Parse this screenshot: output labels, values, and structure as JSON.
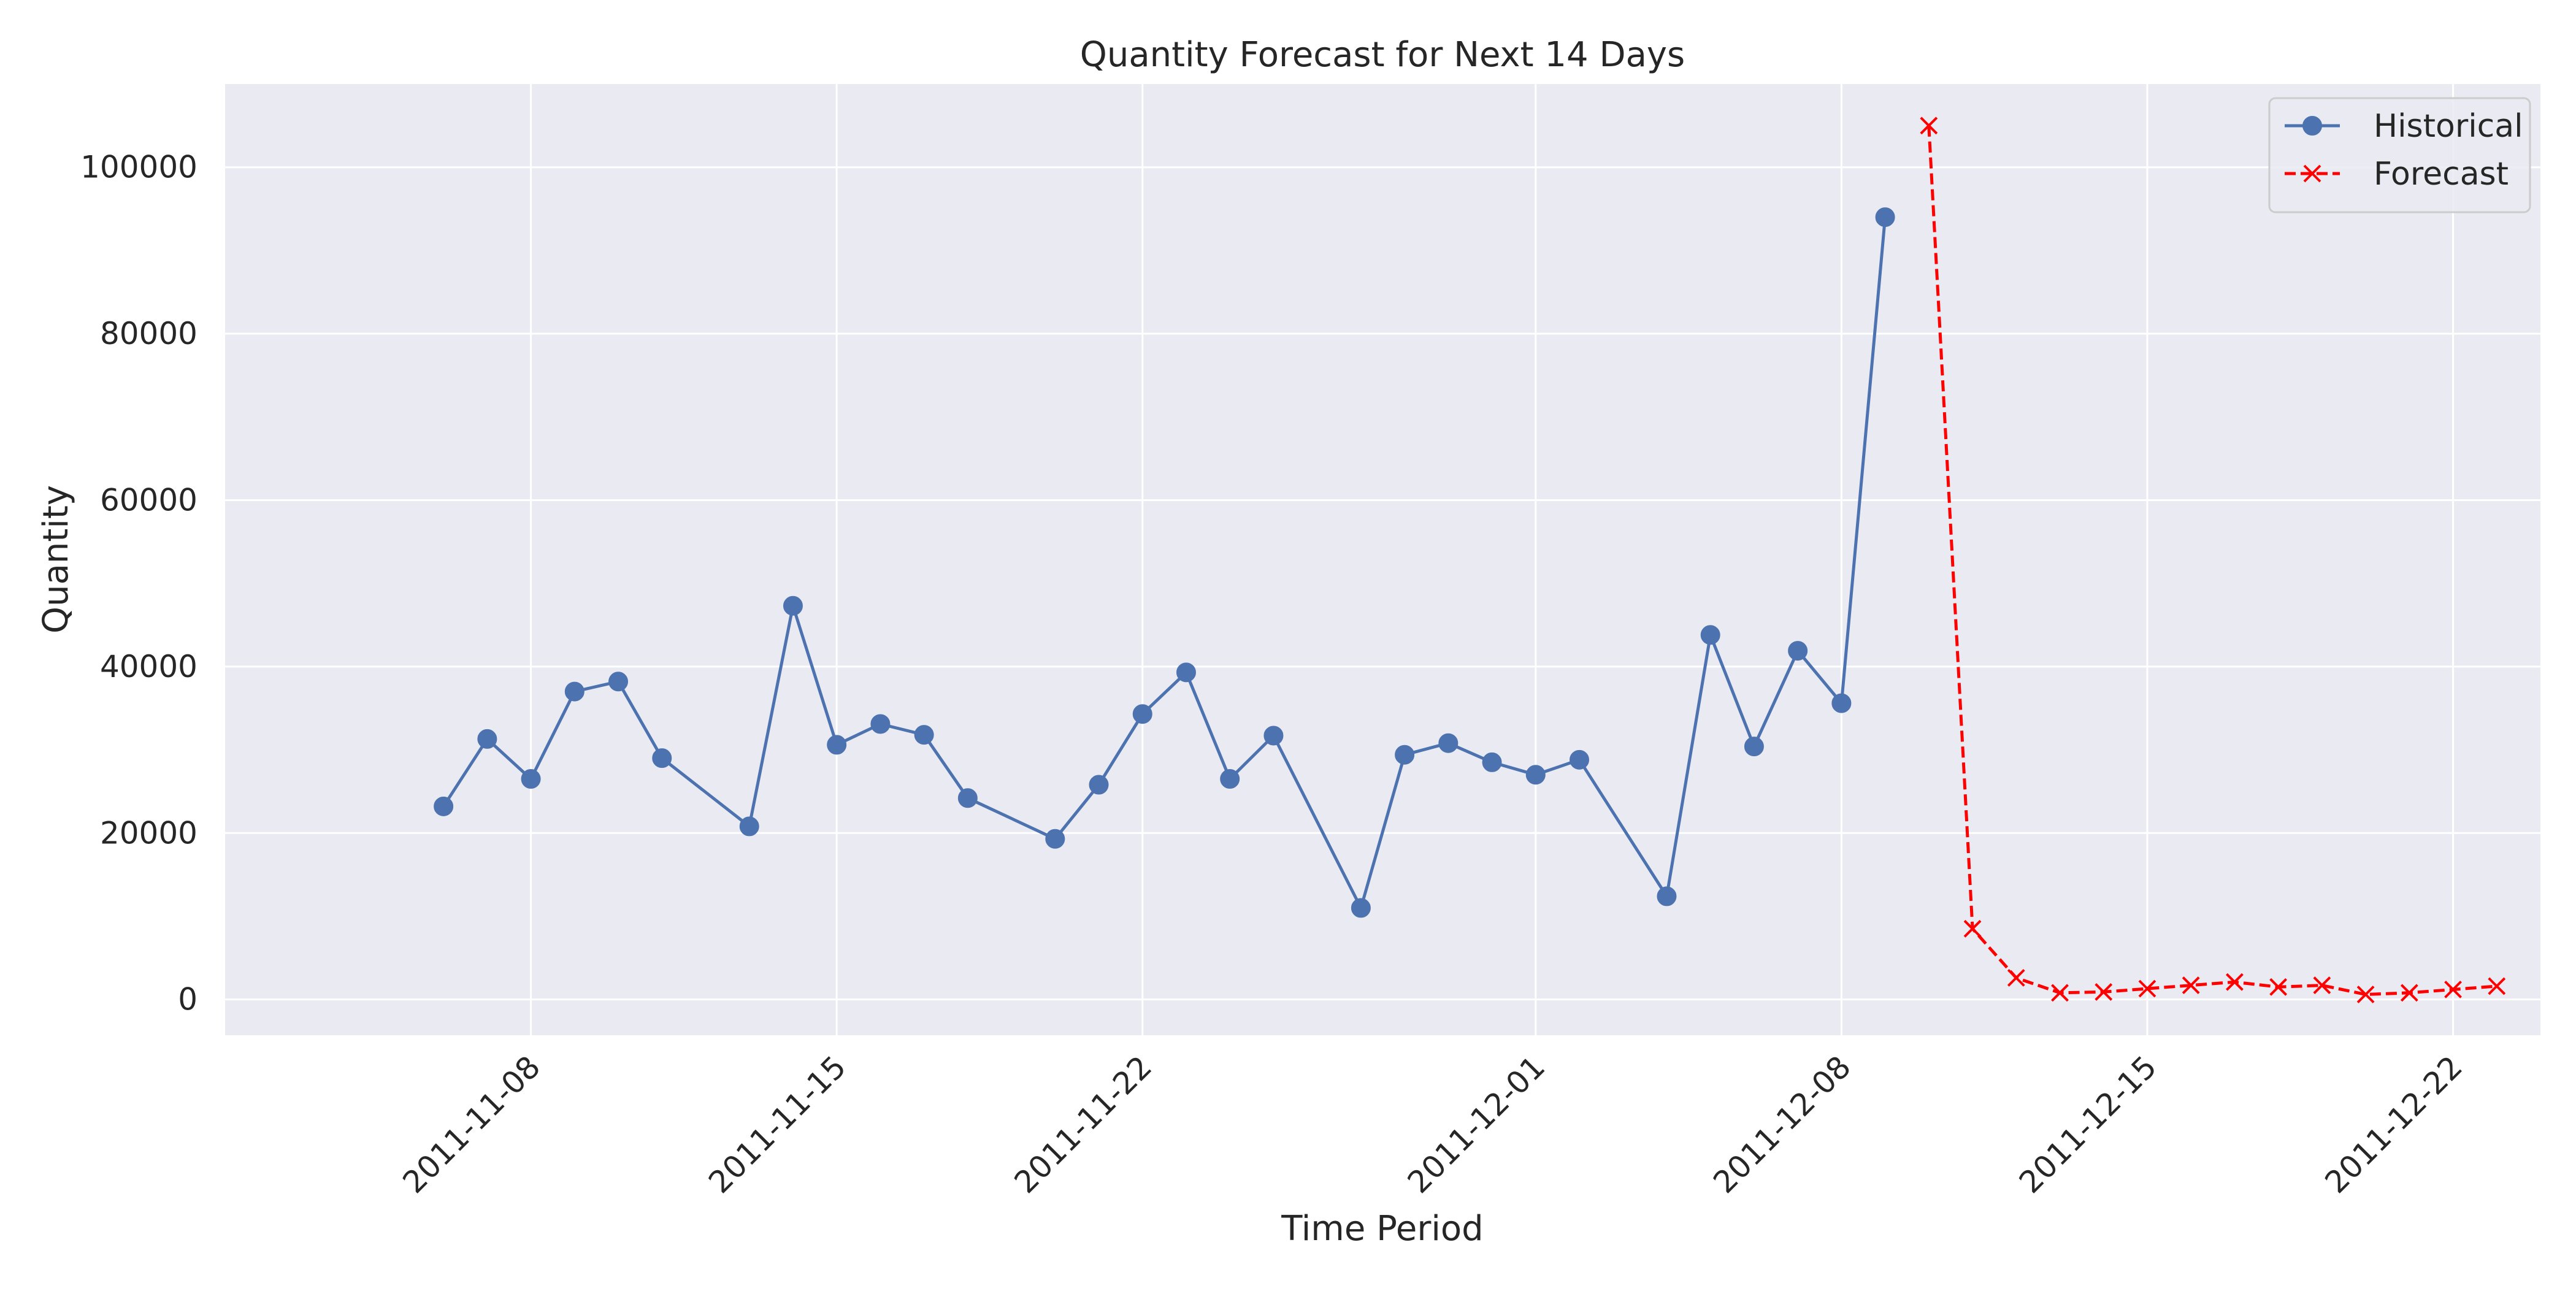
{
  "chart_data": {
    "type": "line",
    "title": "Quantity Forecast for Next 14 Days",
    "xlabel": "Time Period",
    "ylabel": "Quantity",
    "x_axis_type": "date",
    "xlim": [
      "2011-11-01",
      "2011-12-24"
    ],
    "ylim": [
      -4300,
      110000
    ],
    "x_ticks": [
      "2011-11-08",
      "2011-11-15",
      "2011-11-22",
      "2011-12-01",
      "2011-12-08",
      "2011-12-15",
      "2011-12-22"
    ],
    "y_ticks": [
      0,
      20000,
      40000,
      60000,
      80000,
      100000
    ],
    "grid": true,
    "legend_position": "top-right",
    "series": [
      {
        "name": "Historical",
        "color": "#4c72b0",
        "line_style": "solid",
        "marker": "circle",
        "x": [
          "2011-11-06",
          "2011-11-07",
          "2011-11-08",
          "2011-11-09",
          "2011-11-10",
          "2011-11-11",
          "2011-11-13",
          "2011-11-14",
          "2011-11-15",
          "2011-11-16",
          "2011-11-17",
          "2011-11-18",
          "2011-11-20",
          "2011-11-21",
          "2011-11-22",
          "2011-11-23",
          "2011-11-24",
          "2011-11-25",
          "2011-11-27",
          "2011-11-28",
          "2011-11-29",
          "2011-11-30",
          "2011-12-01",
          "2011-12-02",
          "2011-12-04",
          "2011-12-05",
          "2011-12-06",
          "2011-12-07",
          "2011-12-08",
          "2011-12-09"
        ],
        "y": [
          23200,
          31300,
          26500,
          37000,
          38200,
          29000,
          20800,
          47300,
          30600,
          33100,
          31800,
          24200,
          19300,
          25800,
          34300,
          39300,
          26500,
          31700,
          11000,
          29400,
          30800,
          28500,
          27000,
          28800,
          12400,
          43800,
          30400,
          41900,
          35600,
          94000
        ]
      },
      {
        "name": "Forecast",
        "color": "#ff0000",
        "line_style": "dashed",
        "marker": "x",
        "x": [
          "2011-12-10",
          "2011-12-11",
          "2011-12-12",
          "2011-12-13",
          "2011-12-14",
          "2011-12-15",
          "2011-12-16",
          "2011-12-17",
          "2011-12-18",
          "2011-12-19",
          "2011-12-20",
          "2011-12-21",
          "2011-12-22",
          "2011-12-23"
        ],
        "y": [
          105000,
          8500,
          2600,
          800,
          900,
          1300,
          1700,
          2100,
          1500,
          1700,
          600,
          800,
          1200,
          1600
        ]
      }
    ]
  }
}
